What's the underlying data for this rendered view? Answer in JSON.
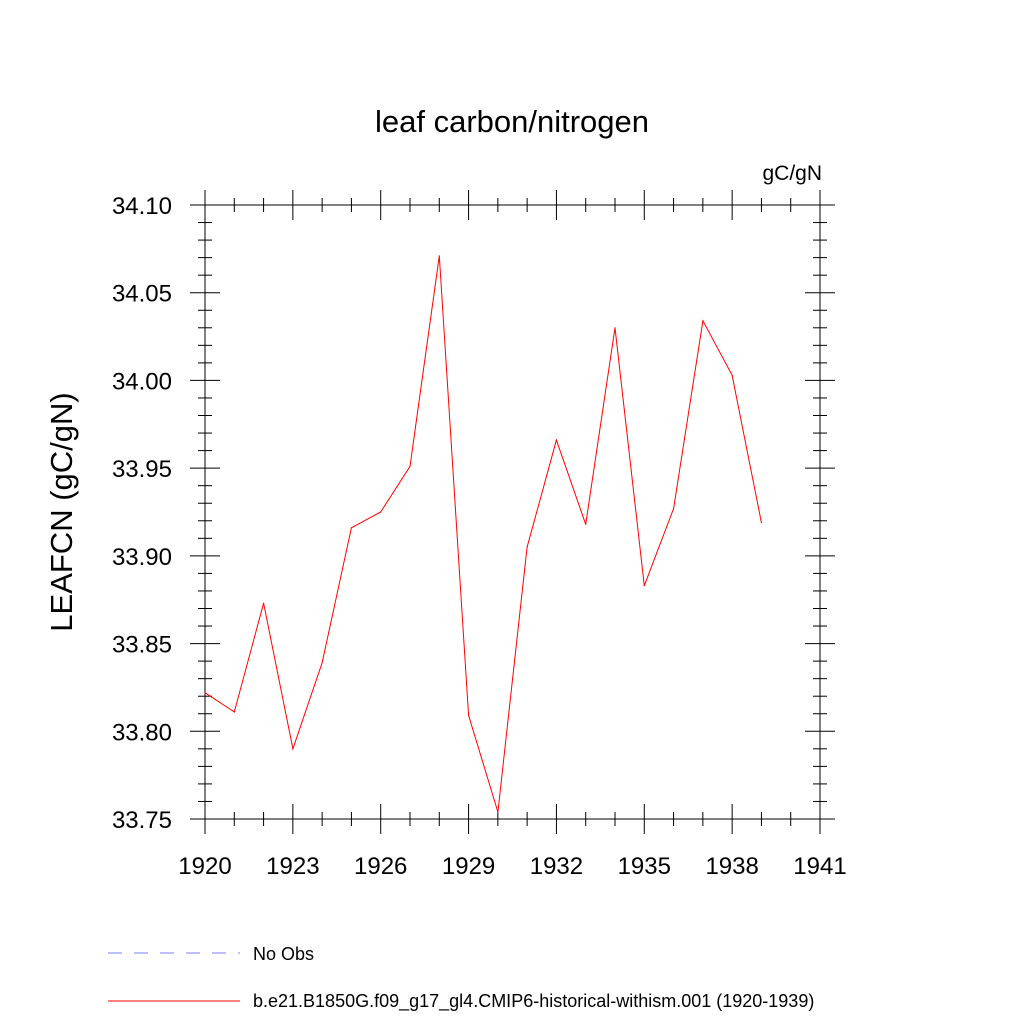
{
  "chart_data": {
    "type": "line",
    "title": "leaf carbon/nitrogen",
    "units_label": "gC/gN",
    "ylabel": "LEAFCN  (gC/gN)",
    "xlabel": "",
    "xlim": [
      1920,
      1941
    ],
    "ylim": [
      33.75,
      34.1
    ],
    "xticks": [
      1920,
      1923,
      1926,
      1929,
      1932,
      1935,
      1938,
      1941
    ],
    "xtick_labels": [
      "1920",
      "1923",
      "1926",
      "1929",
      "1932",
      "1935",
      "1938",
      "1941"
    ],
    "yticks": [
      33.75,
      33.8,
      33.85,
      33.9,
      33.95,
      34.0,
      34.05,
      34.1
    ],
    "ytick_labels": [
      "33.75",
      "33.80",
      "33.85",
      "33.90",
      "33.95",
      "34.00",
      "34.05",
      "34.10"
    ],
    "grid": false,
    "legend_position": "bottom",
    "series": [
      {
        "name": "b.e21.B1850G.f09_g17_gl4.CMIP6-historical-withism.001 (1920-1939)",
        "color": "#ff0000",
        "style": "solid",
        "x": [
          1920,
          1921,
          1922,
          1923,
          1924,
          1925,
          1926,
          1927,
          1928,
          1929,
          1930,
          1931,
          1932,
          1933,
          1934,
          1935,
          1936,
          1937,
          1938,
          1939
        ],
        "y": [
          33.822,
          33.811,
          33.873,
          33.79,
          33.839,
          33.916,
          33.925,
          33.951,
          34.071,
          33.809,
          33.754,
          33.905,
          33.966,
          33.918,
          34.03,
          33.883,
          33.927,
          34.034,
          34.003,
          33.919
        ]
      }
    ],
    "legend": [
      {
        "label": "No Obs",
        "color": "#7f7fff",
        "style": "dashed"
      },
      {
        "label": "b.e21.B1850G.f09_g17_gl4.CMIP6-historical-withism.001 (1920-1939)",
        "color": "#ff0000",
        "style": "solid"
      }
    ]
  }
}
